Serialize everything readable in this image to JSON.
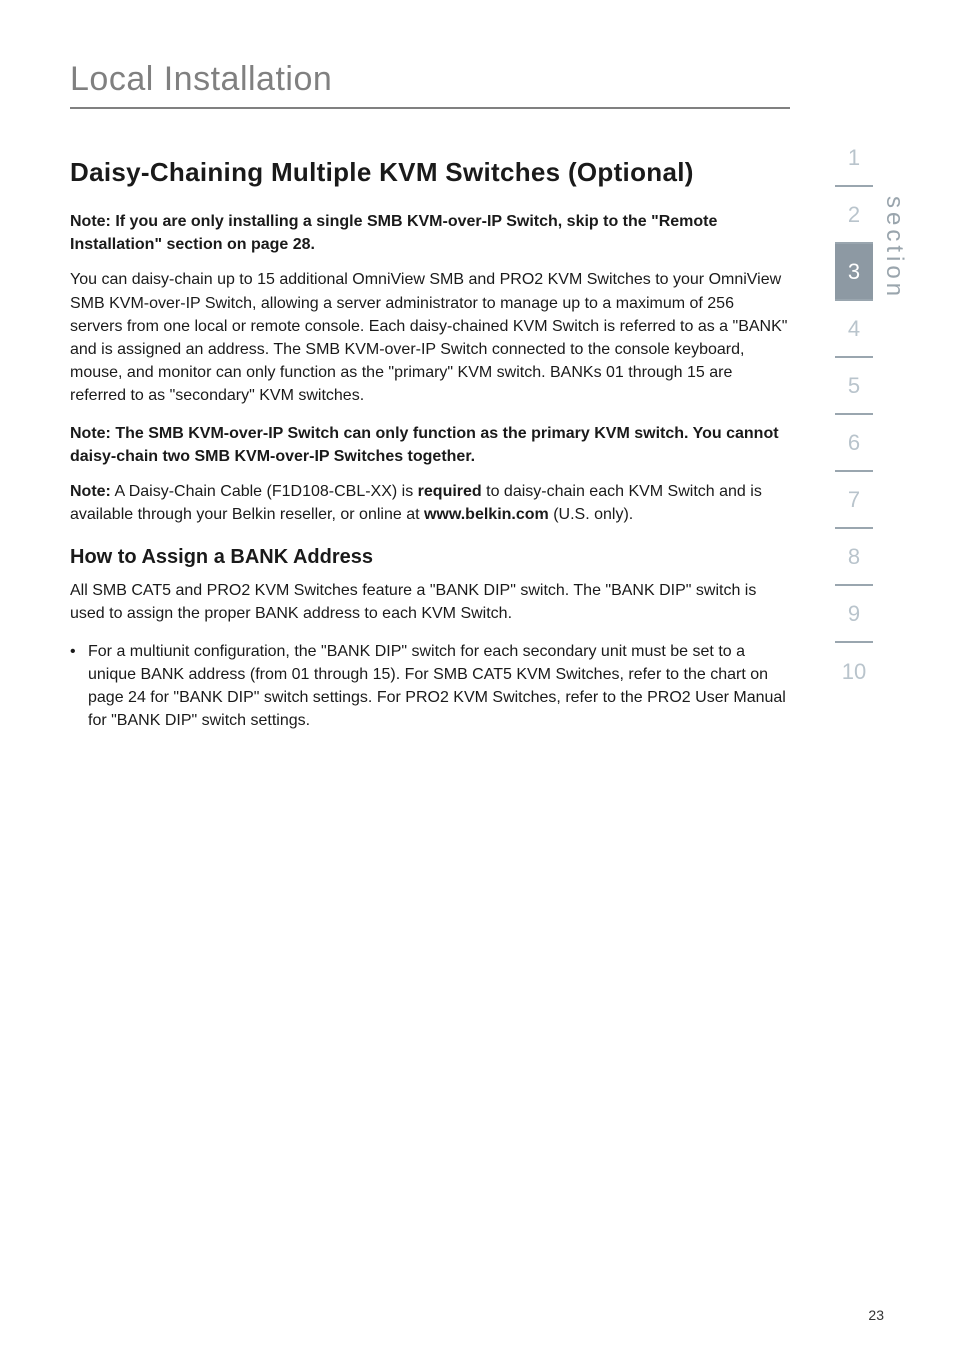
{
  "chapter": {
    "title": "Local Installation"
  },
  "section": {
    "heading": "Daisy-Chaining Multiple KVM Switches (Optional)",
    "note_skip": "Note: If you are only installing a single SMB KVM-over-IP Switch, skip to the \"Remote Installation\" section on page 28.",
    "intro_para": "You can daisy-chain up to 15 additional OmniView SMB and PRO2 KVM Switches to your OmniView SMB KVM-over-IP Switch, allowing a server administrator to manage up to a maximum of 256 servers from one local or remote console. Each daisy-chained KVM Switch is referred to as a \"BANK\" and is assigned an address. The SMB KVM-over-IP Switch connected to the console keyboard, mouse, and monitor can only function as the \"primary\" KVM switch. BANKs 01 through 15 are referred to as \"secondary\" KVM switches.",
    "note_primary": "Note: The SMB KVM-over-IP Switch can only function as the primary KVM switch. You cannot daisy-chain two SMB KVM-over-IP Switches together.",
    "note_cable_prefix": "Note:",
    "note_cable_mid1": " A Daisy-Chain Cable (F1D108-CBL-XX) is ",
    "note_cable_bold": "required",
    "note_cable_mid2": " to daisy-chain each KVM Switch and is available through your Belkin reseller, or online at ",
    "note_cable_link": "www.belkin.com",
    "note_cable_suffix": " (U.S. only).",
    "sub_heading": "How to Assign a BANK Address",
    "bank_para": "All SMB CAT5 and PRO2 KVM Switches feature a \"BANK DIP\" switch. The \"BANK DIP\" switch is used to assign the proper BANK address to each KVM Switch.",
    "bullet1": "For a multiunit configuration, the \"BANK DIP\" switch for each secondary unit must be set to a unique BANK address (from 01 through 15). For SMB CAT5 KVM Switches, refer to the chart on page 24 for \"BANK DIP\" switch settings. For PRO2 KVM Switches, refer to the PRO2 User Manual for \"BANK DIP\" switch settings."
  },
  "sidebar": {
    "label": "section",
    "tabs": [
      "1",
      "2",
      "3",
      "4",
      "5",
      "6",
      "7",
      "8",
      "9",
      "10"
    ],
    "active_index": 2,
    "active_bg": "#8d99a3",
    "inactive_color": "#b9c4cc",
    "divider_color": "#9aa6af"
  },
  "page_number": "23",
  "colors": {
    "chapter_title": "#808080",
    "rule": "#808080",
    "body": "#1a1a1a",
    "side_label": "#9aa5ad"
  },
  "typography": {
    "chapter_title_size": 34,
    "section_heading_size": 26,
    "sub_heading_size": 20,
    "body_size": 16,
    "page_number_size": 14,
    "tab_size": 22,
    "side_label_size": 24
  }
}
